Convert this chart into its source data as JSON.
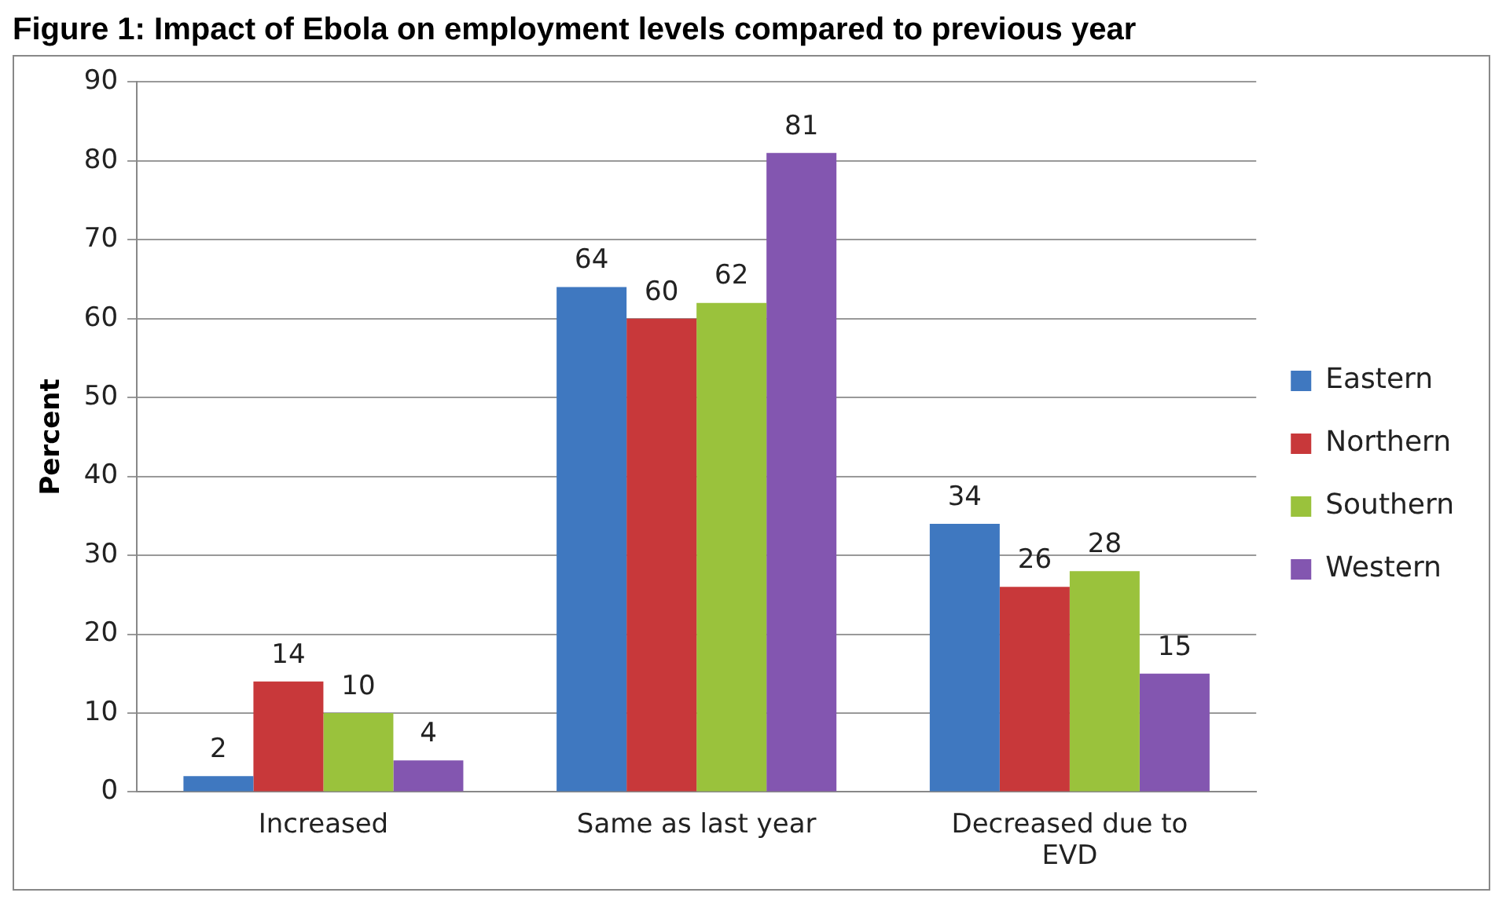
{
  "chart_data": {
    "type": "bar",
    "title": "Figure 1: Impact of Ebola on employment levels compared to previous year",
    "ylabel": "Percent",
    "categories": [
      "Increased",
      "Same as last year",
      "Decreased due to EVD"
    ],
    "series": [
      {
        "name": "Eastern",
        "color": "#3f78c0",
        "values": [
          2,
          64,
          34
        ]
      },
      {
        "name": "Northern",
        "color": "#c8383a",
        "values": [
          14,
          60,
          26
        ]
      },
      {
        "name": "Southern",
        "color": "#9ac23c",
        "values": [
          10,
          62,
          28
        ]
      },
      {
        "name": "Western",
        "color": "#8356b0",
        "values": [
          4,
          81,
          15
        ]
      }
    ],
    "ylim": [
      0,
      90
    ],
    "yticks": [
      0,
      10,
      20,
      30,
      40,
      50,
      60,
      70,
      80,
      90
    ],
    "grid": "y",
    "legend": "right",
    "data_labels": true
  }
}
